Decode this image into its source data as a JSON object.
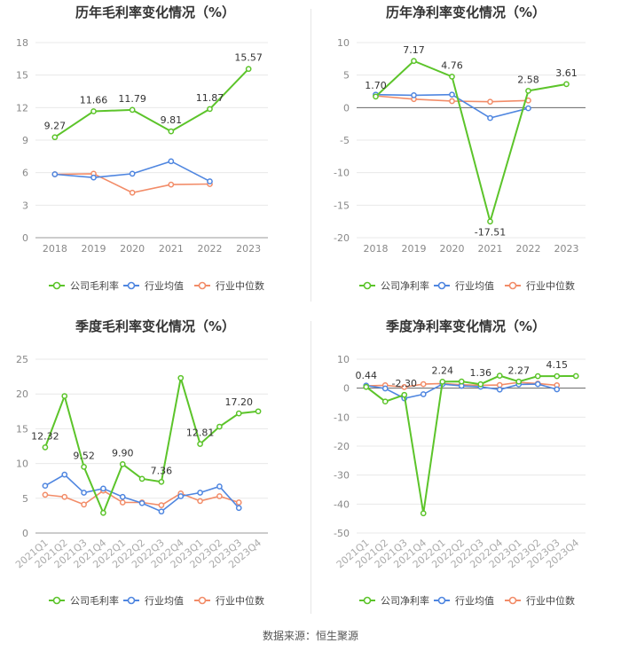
{
  "legend_labels": {
    "company": "",
    "avg": "",
    "median": ""
  },
  "colors": {
    "company": "#5cc42a",
    "avg": "#4f86e0",
    "median": "#f28c68",
    "grid": "#e8e8e8",
    "axis": "#888888"
  },
  "source": "数据来源：恒生聚源",
  "chart_data": [
    {
      "id": "annual-gross",
      "type": "line",
      "title": "历年毛利率变化情况（%）",
      "categories": [
        "2018",
        "2019",
        "2020",
        "2021",
        "2022",
        "2023"
      ],
      "yticks": [
        0,
        3,
        6,
        9,
        12,
        15,
        18
      ],
      "ylim": [
        0,
        18
      ],
      "legend": [
        "公司毛利率",
        "行业均值",
        "行业中位数"
      ],
      "series": [
        {
          "name": "公司毛利率",
          "key": "company",
          "values": [
            9.27,
            11.66,
            11.79,
            9.81,
            11.87,
            15.57
          ],
          "labels": [
            "9.27",
            "11.66",
            "11.79",
            "9.81",
            "11.87",
            "15.57"
          ]
        },
        {
          "name": "行业均值",
          "key": "avg",
          "values": [
            5.85,
            5.55,
            5.9,
            7.05,
            5.2,
            null
          ]
        },
        {
          "name": "行业中位数",
          "key": "median",
          "values": [
            5.85,
            5.9,
            4.15,
            4.9,
            4.95,
            null
          ]
        }
      ]
    },
    {
      "id": "annual-net",
      "type": "line",
      "title": "历年净利率变化情况（%）",
      "categories": [
        "2018",
        "2019",
        "2020",
        "2021",
        "2022",
        "2023"
      ],
      "yticks": [
        -20,
        -15,
        -10,
        -5,
        0,
        5,
        10
      ],
      "ylim": [
        -20,
        10
      ],
      "legend": [
        "公司净利率",
        "行业均值",
        "行业中位数"
      ],
      "series": [
        {
          "name": "公司净利率",
          "key": "company",
          "values": [
            1.7,
            7.17,
            4.76,
            -17.51,
            2.58,
            3.61
          ],
          "labels": [
            "1.70",
            "7.17",
            "4.76",
            "-17.51",
            "2.58",
            "3.61"
          ]
        },
        {
          "name": "行业均值",
          "key": "avg",
          "values": [
            2.0,
            1.9,
            2.0,
            -1.6,
            -0.1,
            null
          ]
        },
        {
          "name": "行业中位数",
          "key": "median",
          "values": [
            1.8,
            1.3,
            1.0,
            0.9,
            1.1,
            null
          ]
        }
      ]
    },
    {
      "id": "quarterly-gross",
      "type": "line",
      "title": "季度毛利率变化情况（%）",
      "categories": [
        "2021Q1",
        "2021Q2",
        "2021Q3",
        "2021Q4",
        "2022Q1",
        "2022Q2",
        "2022Q3",
        "2022Q4",
        "2023Q1",
        "2023Q2",
        "2023Q3",
        "2023Q4"
      ],
      "yticks": [
        0,
        5,
        10,
        15,
        20,
        25
      ],
      "ylim": [
        0,
        25
      ],
      "legend": [
        "公司毛利率",
        "行业均值",
        "行业中位数"
      ],
      "series": [
        {
          "name": "公司毛利率",
          "key": "company",
          "values": [
            12.32,
            19.7,
            9.52,
            2.9,
            9.9,
            7.8,
            7.36,
            22.3,
            12.81,
            15.3,
            17.2,
            17.5
          ],
          "labels": [
            "12.32",
            "",
            "9.52",
            "",
            "9.90",
            "",
            "7.36",
            "",
            "12.81",
            "",
            "17.20",
            ""
          ]
        },
        {
          "name": "行业均值",
          "key": "avg",
          "values": [
            6.8,
            8.4,
            5.8,
            6.4,
            5.2,
            4.3,
            3.1,
            5.3,
            5.8,
            6.7,
            3.6,
            null
          ]
        },
        {
          "name": "行业中位数",
          "key": "median",
          "values": [
            5.5,
            5.2,
            4.1,
            6.1,
            4.4,
            4.4,
            4.0,
            5.7,
            4.6,
            5.3,
            4.4,
            null
          ]
        }
      ]
    },
    {
      "id": "quarterly-net",
      "type": "line",
      "title": "季度净利率变化情况（%）",
      "categories": [
        "2021Q1",
        "2021Q2",
        "2021Q3",
        "2021Q4",
        "2022Q1",
        "2022Q2",
        "2022Q3",
        "2022Q4",
        "2023Q1",
        "2023Q2",
        "2023Q3",
        "2023Q4"
      ],
      "yticks": [
        -50,
        -40,
        -30,
        -20,
        -10,
        0,
        10
      ],
      "ylim": [
        -50,
        10
      ],
      "legend": [
        "公司净利率",
        "行业均值",
        "行业中位数"
      ],
      "series": [
        {
          "name": "公司净利率",
          "key": "company",
          "values": [
            0.44,
            -4.6,
            -2.3,
            -43.2,
            2.24,
            2.3,
            1.36,
            4.3,
            2.27,
            4.15,
            4.15,
            4.2
          ],
          "labels": [
            "0.44",
            "",
            "-2.30",
            "",
            "2.24",
            "",
            "1.36",
            "",
            "2.27",
            "",
            "4.15",
            ""
          ]
        },
        {
          "name": "行业均值",
          "key": "avg",
          "values": [
            0.9,
            -0.1,
            -3.5,
            -2.1,
            1.4,
            0.8,
            0.5,
            -0.5,
            1.3,
            1.4,
            -0.4,
            null
          ]
        },
        {
          "name": "行业中位数",
          "key": "median",
          "values": [
            0.8,
            1.0,
            0.4,
            1.4,
            1.6,
            1.2,
            1.0,
            1.1,
            2.0,
            1.6,
            1.0,
            null
          ]
        }
      ]
    }
  ]
}
